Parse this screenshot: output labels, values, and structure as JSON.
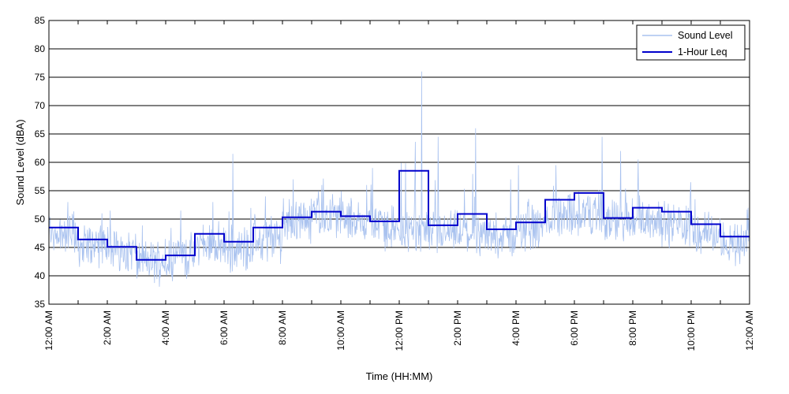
{
  "chart_data": {
    "type": "line",
    "title": "",
    "xlabel": "Time (HH:MM)",
    "ylabel": "Sound Level (dBA)",
    "ylim": [
      35,
      85
    ],
    "yticks": [
      35,
      40,
      45,
      50,
      55,
      60,
      65,
      70,
      75,
      80,
      85
    ],
    "xlim_hours": [
      0,
      24
    ],
    "xticks": [
      {
        "hour": 0,
        "label": "12:00 AM"
      },
      {
        "hour": 2,
        "label": "2:00 AM"
      },
      {
        "hour": 4,
        "label": "4:00 AM"
      },
      {
        "hour": 6,
        "label": "6:00 AM"
      },
      {
        "hour": 8,
        "label": "8:00 AM"
      },
      {
        "hour": 10,
        "label": "10:00 AM"
      },
      {
        "hour": 12,
        "label": "12:00 PM"
      },
      {
        "hour": 14,
        "label": "2:00 PM"
      },
      {
        "hour": 16,
        "label": "4:00 PM"
      },
      {
        "hour": 18,
        "label": "6:00 PM"
      },
      {
        "hour": 20,
        "label": "8:00 PM"
      },
      {
        "hour": 22,
        "label": "10:00 PM"
      },
      {
        "hour": 24,
        "label": "12:00 AM"
      }
    ],
    "minor_tick_hours": [
      1,
      3,
      5,
      7,
      9,
      11,
      13,
      15,
      17,
      19,
      21,
      23
    ],
    "grid": "horizontal",
    "legend": "top-right",
    "series": [
      {
        "name": "Sound Level",
        "color": "#a9c2ef",
        "hourly_mean": [
          47.5,
          45.5,
          44.5,
          42.5,
          43.5,
          45.5,
          44.5,
          46.5,
          49.5,
          50.5,
          49.5,
          48.5,
          48.0,
          47.5,
          47.5,
          47.0,
          48.0,
          50.5,
          51.0,
          49.5,
          50.0,
          49.0,
          47.5,
          46.0
        ],
        "hourly_max": [
          53,
          51,
          51.5,
          46.5,
          51.5,
          53,
          61.5,
          54,
          57,
          56,
          56,
          59,
          76,
          64.5,
          66,
          57,
          59.5,
          59.5,
          64.5,
          62,
          60.5,
          56.5,
          53.5,
          52
        ]
      },
      {
        "name": "1-Hour Leq",
        "color": "#0000cc",
        "values": [
          48.5,
          46.4,
          45.1,
          42.8,
          43.6,
          47.4,
          46.0,
          48.5,
          50.3,
          51.3,
          50.5,
          49.6,
          58.5,
          48.9,
          50.9,
          48.2,
          49.4,
          53.4,
          54.6,
          50.2,
          52.0,
          51.3,
          49.1,
          46.9
        ]
      }
    ]
  },
  "legend": {
    "items": [
      {
        "label": "Sound Level",
        "color": "#a9c2ef"
      },
      {
        "label": "1-Hour Leq",
        "color": "#0000cc"
      }
    ]
  }
}
